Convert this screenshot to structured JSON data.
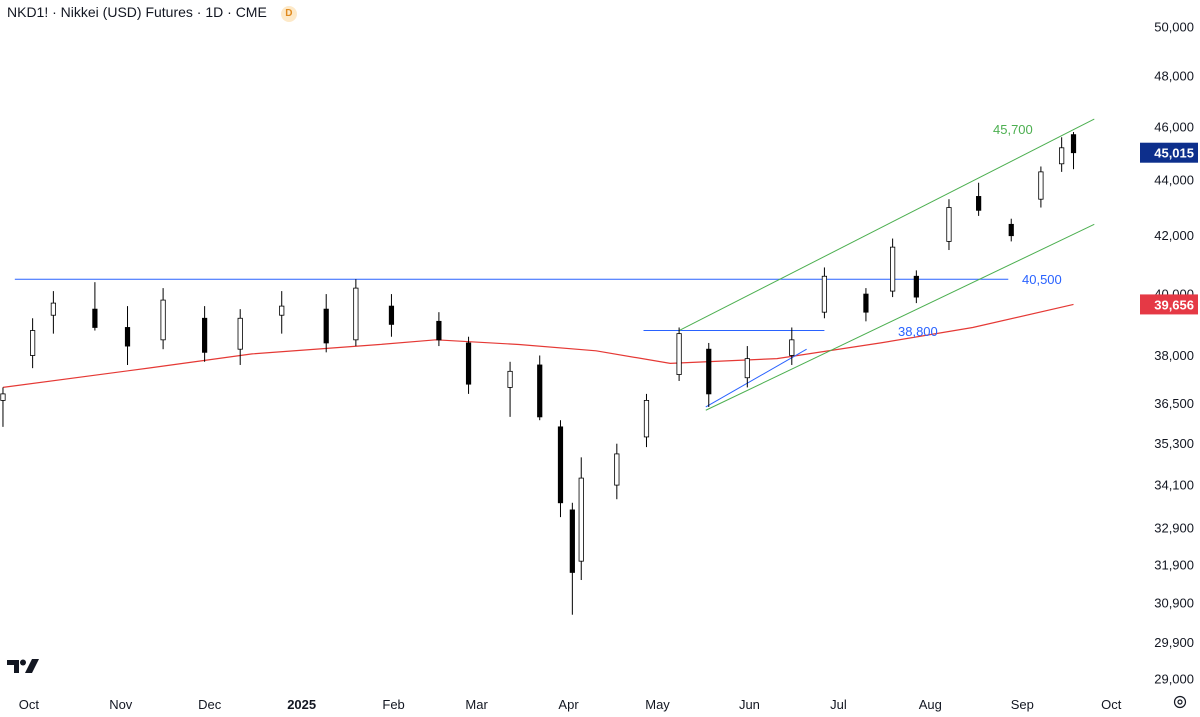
{
  "header": {
    "title": "NKD1! · Nikkei (USD) Futures · 1D · CME",
    "badge": "D"
  },
  "colors": {
    "candle": "#000000",
    "hline": "#2962ff",
    "channel": "#4caf50",
    "ma": "#e53935",
    "last_price_bg": "#0d2f8c",
    "ma_label_bg": "#e53945"
  },
  "icons": [
    "tradingview-logo-icon",
    "settings-icon"
  ],
  "chart_data": {
    "type": "candlestick",
    "symbol": "NKD1!",
    "name": "Nikkei (USD) Futures",
    "interval": "1D",
    "exchange": "CME",
    "x_axis": {
      "labels": [
        "Oct",
        "Nov",
        "Dec",
        "2025",
        "Feb",
        "Mar",
        "Apr",
        "May",
        "Jun",
        "Jul",
        "Aug",
        "Sep",
        "Oct"
      ],
      "range": [
        "2024-10",
        "2025-10"
      ]
    },
    "y_axis": {
      "labels": [
        "50,000",
        "48,000",
        "46,000",
        "44,000",
        "42,000",
        "40,000",
        "38,000",
        "36,500",
        "35,300",
        "34,100",
        "32,900",
        "31,900",
        "30,900",
        "29,900",
        "29,000"
      ],
      "scale": "log",
      "range": [
        29000,
        50000
      ]
    },
    "last_price": "45,015",
    "ma_label": "39,656",
    "annotations": [
      {
        "text": "45,700",
        "kind": "channel-top"
      },
      {
        "text": "40,500",
        "kind": "resistance-line"
      },
      {
        "text": "38,800",
        "kind": "support-line"
      }
    ],
    "horizontal_lines": [
      {
        "value": 40500,
        "from": "2024-10",
        "to": "2025-09"
      },
      {
        "value": 38800,
        "from": "2025-05",
        "to": "2025-07"
      }
    ],
    "channel": {
      "upper": {
        "start": [
          "2025-05-13",
          38800
        ],
        "end": [
          "2025-09-30",
          46300
        ]
      },
      "lower": {
        "start": [
          "2025-05-22",
          36300
        ],
        "end": [
          "2025-09-30",
          42400
        ]
      }
    },
    "moving_average": [
      {
        "x": "2024-09-27",
        "y": 37000
      },
      {
        "x": "2024-11-15",
        "y": 37600
      },
      {
        "x": "2024-12-20",
        "y": 38050
      },
      {
        "x": "2025-02-01",
        "y": 38350
      },
      {
        "x": "2025-02-20",
        "y": 38500
      },
      {
        "x": "2025-03-20",
        "y": 38350
      },
      {
        "x": "2025-04-15",
        "y": 38150
      },
      {
        "x": "2025-05-10",
        "y": 37750
      },
      {
        "x": "2025-06-15",
        "y": 37900
      },
      {
        "x": "2025-07-20",
        "y": 38400
      },
      {
        "x": "2025-08-20",
        "y": 38900
      },
      {
        "x": "2025-09-23",
        "y": 39656
      }
    ],
    "candles": [
      {
        "x": "2024-09-27",
        "o": 36600,
        "h": 37000,
        "l": 35800,
        "c": 36800
      },
      {
        "x": "2024-10-07",
        "o": 38000,
        "h": 39200,
        "l": 37600,
        "c": 38800
      },
      {
        "x": "2024-10-14",
        "o": 39300,
        "h": 40100,
        "l": 38700,
        "c": 39700
      },
      {
        "x": "2024-10-28",
        "o": 39500,
        "h": 40400,
        "l": 38800,
        "c": 38900
      },
      {
        "x": "2024-11-08",
        "o": 38900,
        "h": 39600,
        "l": 37700,
        "c": 38300
      },
      {
        "x": "2024-11-20",
        "o": 38500,
        "h": 40200,
        "l": 38200,
        "c": 39800
      },
      {
        "x": "2024-12-04",
        "o": 39200,
        "h": 39600,
        "l": 37800,
        "c": 38100
      },
      {
        "x": "2024-12-16",
        "o": 38200,
        "h": 39500,
        "l": 37700,
        "c": 39200
      },
      {
        "x": "2024-12-30",
        "o": 39300,
        "h": 40100,
        "l": 38700,
        "c": 39600
      },
      {
        "x": "2025-01-14",
        "o": 39500,
        "h": 40000,
        "l": 38100,
        "c": 38400
      },
      {
        "x": "2025-01-24",
        "o": 38500,
        "h": 40500,
        "l": 38300,
        "c": 40200
      },
      {
        "x": "2025-02-05",
        "o": 39600,
        "h": 40000,
        "l": 38600,
        "c": 39000
      },
      {
        "x": "2025-02-21",
        "o": 39100,
        "h": 39400,
        "l": 38300,
        "c": 38500
      },
      {
        "x": "2025-03-03",
        "o": 38400,
        "h": 38600,
        "l": 36800,
        "c": 37100
      },
      {
        "x": "2025-03-17",
        "o": 37000,
        "h": 37800,
        "l": 36100,
        "c": 37500
      },
      {
        "x": "2025-03-27",
        "o": 37700,
        "h": 38000,
        "l": 36000,
        "c": 36100
      },
      {
        "x": "2025-04-03",
        "o": 35800,
        "h": 36000,
        "l": 33200,
        "c": 33600
      },
      {
        "x": "2025-04-07",
        "o": 33400,
        "h": 33600,
        "l": 30600,
        "c": 31700
      },
      {
        "x": "2025-04-10",
        "o": 32000,
        "h": 34900,
        "l": 31500,
        "c": 34300
      },
      {
        "x": "2025-04-22",
        "o": 34100,
        "h": 35300,
        "l": 33700,
        "c": 35000
      },
      {
        "x": "2025-05-02",
        "o": 35500,
        "h": 36800,
        "l": 35200,
        "c": 36600
      },
      {
        "x": "2025-05-13",
        "o": 37400,
        "h": 38900,
        "l": 37200,
        "c": 38700
      },
      {
        "x": "2025-05-23",
        "o": 38200,
        "h": 38400,
        "l": 36400,
        "c": 36800
      },
      {
        "x": "2025-06-05",
        "o": 37300,
        "h": 38300,
        "l": 37000,
        "c": 37900
      },
      {
        "x": "2025-06-20",
        "o": 38000,
        "h": 38900,
        "l": 37700,
        "c": 38500
      },
      {
        "x": "2025-07-01",
        "o": 39400,
        "h": 40900,
        "l": 39200,
        "c": 40600
      },
      {
        "x": "2025-07-15",
        "o": 40000,
        "h": 40200,
        "l": 39100,
        "c": 39400
      },
      {
        "x": "2025-07-24",
        "o": 40100,
        "h": 41900,
        "l": 39900,
        "c": 41600
      },
      {
        "x": "2025-08-01",
        "o": 40600,
        "h": 40800,
        "l": 39700,
        "c": 39900
      },
      {
        "x": "2025-08-12",
        "o": 41800,
        "h": 43300,
        "l": 41500,
        "c": 43000
      },
      {
        "x": "2025-08-22",
        "o": 43400,
        "h": 43900,
        "l": 42700,
        "c": 42900
      },
      {
        "x": "2025-09-02",
        "o": 42400,
        "h": 42600,
        "l": 41800,
        "c": 42000
      },
      {
        "x": "2025-09-12",
        "o": 43300,
        "h": 44500,
        "l": 43000,
        "c": 44300
      },
      {
        "x": "2025-09-19",
        "o": 44600,
        "h": 45600,
        "l": 44300,
        "c": 45200
      },
      {
        "x": "2025-09-23",
        "o": 45700,
        "h": 45800,
        "l": 44400,
        "c": 45015
      }
    ]
  }
}
